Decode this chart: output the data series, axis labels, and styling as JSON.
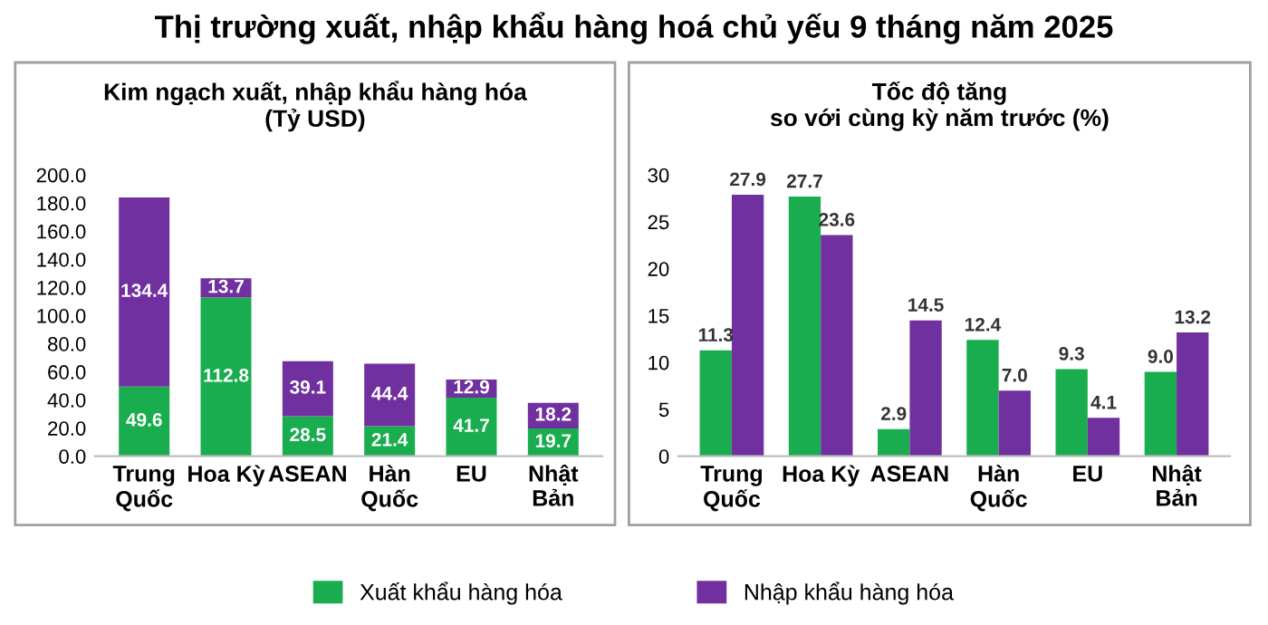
{
  "chart_data": [
    {
      "type": "bar",
      "title": "Thị trường xuất, nhập khẩu hàng hoá chủ yếu 9 tháng năm 2025",
      "subtitle": "Kim ngạch xuất, nhập khẩu hàng hóa\n(Tỷ USD)",
      "stacked": true,
      "data_labels": true,
      "legend": "bottom",
      "grid": false,
      "categories": [
        "Trung\nQuốc",
        "Hoa Kỳ",
        "ASEAN",
        "Hàn\nQuốc",
        "EU",
        "Nhật\nBản"
      ],
      "series": [
        {
          "name": "Xuất khẩu hàng hóa",
          "color": "#1aad4f",
          "values": [
            49.6,
            112.8,
            28.5,
            21.4,
            41.7,
            19.7
          ]
        },
        {
          "name": "Nhập khẩu hàng hóa",
          "color": "#7030a0",
          "values": [
            134.4,
            13.7,
            39.1,
            44.4,
            12.9,
            18.2
          ]
        }
      ],
      "ylim": [
        0,
        200
      ],
      "yticks": [
        {
          "value": 0,
          "label": "0.0"
        },
        {
          "value": 20,
          "label": "20.0"
        },
        {
          "value": 40,
          "label": "40.0"
        },
        {
          "value": 60,
          "label": "60.0"
        },
        {
          "value": 80,
          "label": "80.0"
        },
        {
          "value": 100,
          "label": "100.0"
        },
        {
          "value": 120,
          "label": "120.0"
        },
        {
          "value": 140,
          "label": "140.0"
        },
        {
          "value": 160,
          "label": "160.0"
        },
        {
          "value": 180,
          "label": "180.0"
        },
        {
          "value": 200,
          "label": "200.0"
        }
      ]
    },
    {
      "type": "bar",
      "subtitle": "Tốc độ tăng\nso với cùng kỳ năm trước (%)",
      "grid": false,
      "categories": [
        "Trung\nQuốc",
        "Hoa Kỳ",
        "ASEAN",
        "Hàn\nQuốc",
        "EU",
        "Nhật\nBản"
      ],
      "series": [
        {
          "color": "#1aad4f",
          "values": [
            11.3,
            27.7,
            2.9,
            12.4,
            9.3,
            9.0
          ],
          "value_labels": [
            "11.3",
            "27.7",
            "2.9",
            "12.4",
            "9.3",
            "9.0"
          ]
        },
        {
          "color": "#7030a0",
          "values": [
            27.9,
            23.6,
            14.5,
            7.0,
            4.1,
            13.2
          ],
          "value_labels": [
            "27.9",
            "23.6",
            "14.5",
            "7.0",
            "4.1",
            "13.2"
          ]
        }
      ],
      "ylim": [
        0,
        30
      ],
      "yticks": [
        0,
        5,
        10,
        15,
        20,
        25,
        30
      ]
    }
  ]
}
